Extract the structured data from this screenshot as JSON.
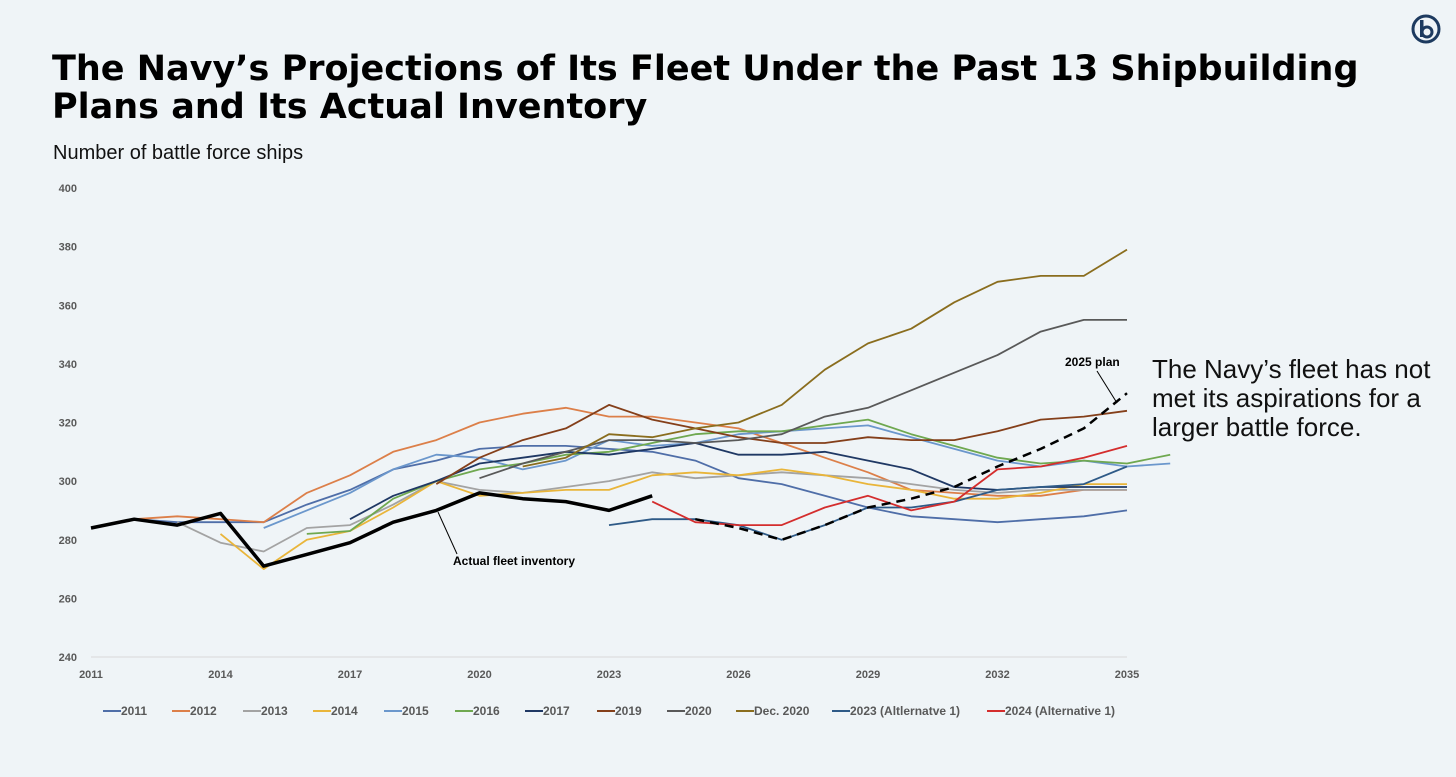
{
  "header": {
    "title": "The Navy’s Projections of Its Fleet Under the Past 13 Shipbuilding Plans and Its Actual Inventory",
    "subtitle": "Number of battle force ships",
    "logo_icon": "circle-b-logo-icon"
  },
  "side_note": "The Navy’s fleet has not met its aspirations for a larger battle force.",
  "chart_data": {
    "type": "line",
    "title": "The Navy’s Projections of Its Fleet Under the Past 13 Shipbuilding Plans and Its Actual Inventory",
    "ylabel": "Number of battle force ships",
    "xlabel": "",
    "xlim": [
      2011,
      2035
    ],
    "ylim": [
      240,
      400
    ],
    "x_ticks": [
      "2011",
      "2014",
      "2017",
      "2020",
      "2023",
      "2026",
      "2029",
      "2032",
      "2035"
    ],
    "y_ticks": [
      "240",
      "260",
      "280",
      "300",
      "320",
      "340",
      "360",
      "380",
      "400"
    ],
    "legend_position": "bottom",
    "series": [
      {
        "name": "2011",
        "color": "#4f6ea8",
        "in_legend": true,
        "start": 2011,
        "values": [
          284,
          287,
          286,
          286,
          286,
          292,
          297,
          304,
          307,
          311,
          312,
          312,
          311,
          310,
          307,
          301,
          299,
          295,
          291,
          288,
          287,
          286,
          287,
          288,
          290
        ]
      },
      {
        "name": "2012",
        "color": "#dc7f49",
        "in_legend": true,
        "start": 2012,
        "values": [
          287,
          288,
          287,
          286,
          296,
          302,
          310,
          314,
          320,
          323,
          325,
          322,
          322,
          320,
          318,
          313,
          308,
          303,
          297,
          296,
          295,
          295,
          297,
          297
        ]
      },
      {
        "name": "2013",
        "color": "#a3a3a3",
        "in_legend": true,
        "start": 2013,
        "values": [
          286,
          279,
          276,
          284,
          285,
          292,
          300,
          297,
          296,
          298,
          300,
          303,
          301,
          302,
          303,
          302,
          301,
          299,
          297,
          296,
          297,
          297,
          297
        ]
      },
      {
        "name": "2014",
        "color": "#e9b53a",
        "in_legend": true,
        "start": 2014,
        "values": [
          282,
          270,
          280,
          283,
          291,
          300,
          295,
          296,
          297,
          297,
          302,
          303,
          302,
          304,
          302,
          299,
          297,
          294,
          294,
          296,
          299,
          299
        ]
      },
      {
        "name": "2015",
        "color": "#6b97cc",
        "in_legend": true,
        "start": 2015,
        "values": [
          284,
          290,
          296,
          304,
          309,
          308,
          304,
          307,
          314,
          312,
          313,
          316,
          317,
          318,
          319,
          315,
          311,
          307,
          305,
          307,
          305,
          306
        ]
      },
      {
        "name": "2016",
        "color": "#6fa850",
        "in_legend": true,
        "start": 2016,
        "values": [
          282,
          283,
          294,
          300,
          304,
          306,
          309,
          310,
          313,
          316,
          317,
          317,
          319,
          321,
          316,
          312,
          308,
          306,
          307,
          306,
          309
        ]
      },
      {
        "name": "2017",
        "color": "#1f3864",
        "in_legend": true,
        "start": 2017,
        "values": [
          287,
          295,
          300,
          306,
          308,
          310,
          309,
          311,
          313,
          309,
          309,
          310,
          307,
          304,
          298,
          297,
          298,
          298,
          298
        ]
      },
      {
        "name": "2019",
        "color": "#843f1a",
        "in_legend": true,
        "start": 2019,
        "values": [
          299,
          308,
          314,
          318,
          326,
          321,
          318,
          315,
          313,
          313,
          315,
          314,
          314,
          317,
          321,
          322,
          324
        ]
      },
      {
        "name": "2020",
        "color": "#595959",
        "in_legend": true,
        "start": 2020,
        "values": [
          301,
          306,
          310,
          314,
          314,
          313,
          314,
          316,
          322,
          325,
          331,
          337,
          343,
          351,
          355,
          355
        ]
      },
      {
        "name": "Dec. 2020",
        "color": "#8a6d1e",
        "in_legend": true,
        "start": 2021,
        "values": [
          305,
          308,
          316,
          315,
          318,
          320,
          326,
          338,
          347,
          352,
          361,
          368,
          370,
          370,
          379
        ]
      },
      {
        "name": "2023 (Altlernatve 1)",
        "color": "#2e5a87",
        "in_legend": true,
        "start": 2023,
        "values": [
          285,
          287,
          287,
          285,
          280,
          285,
          291,
          291,
          293,
          297,
          298,
          299,
          305
        ]
      },
      {
        "name": "2024 (Alternative 1)",
        "color": "#d42d2d",
        "in_legend": true,
        "start": 2024,
        "values": [
          293,
          286,
          285,
          285,
          291,
          295,
          290,
          293,
          304,
          305,
          308,
          312
        ]
      },
      {
        "name": "2025 plan",
        "color": "#000000",
        "in_legend": false,
        "dashed": true,
        "start": 2025,
        "values": [
          287,
          284,
          280,
          285,
          291,
          294,
          298,
          305,
          311,
          318,
          330
        ]
      },
      {
        "name": "Actual fleet inventory",
        "color": "#000000",
        "in_legend": false,
        "thick": true,
        "start": 2011,
        "values": [
          284,
          287,
          285,
          289,
          271,
          275,
          279,
          286,
          290,
          296,
          294,
          293,
          290,
          295
        ]
      }
    ],
    "annotations": {
      "actual_label": "Actual fleet inventory",
      "plan_label": "2025 plan"
    }
  }
}
